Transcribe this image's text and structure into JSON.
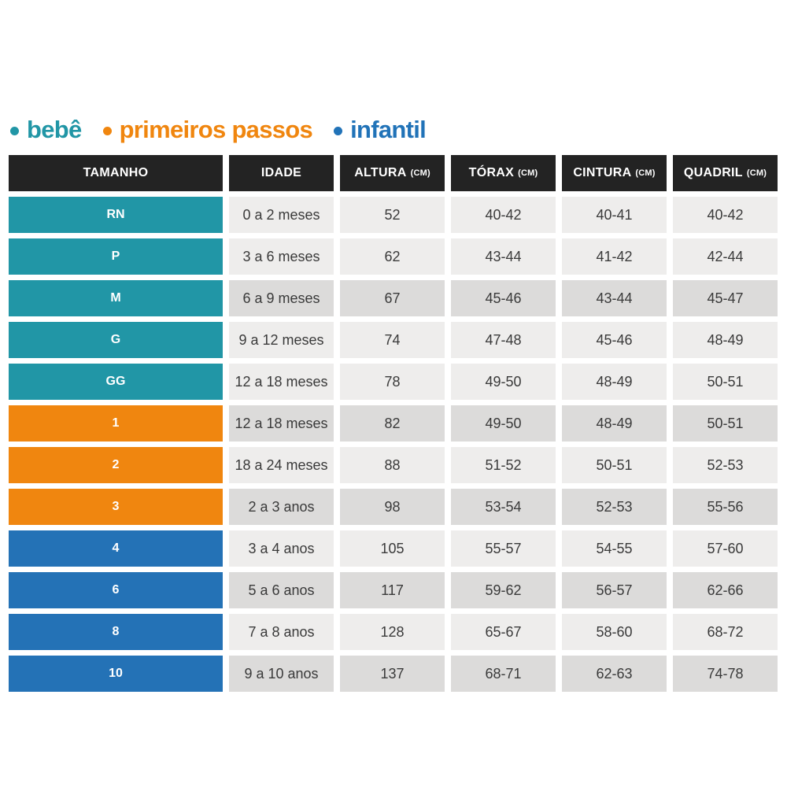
{
  "colors": {
    "bebe": "#2196a6",
    "primeiros_passos": "#f0860f",
    "infantil": "#2472b6",
    "header_bg": "#232323",
    "cell_light": "#eeedec",
    "cell_dark": "#dcdbda",
    "text": "#3a3a3a"
  },
  "legend": {
    "items": [
      {
        "id": "bebe",
        "label": "bebê",
        "color": "#2196a6"
      },
      {
        "id": "primeiros-passos",
        "label": "primeiros passos",
        "color": "#f0860f"
      },
      {
        "id": "infantil",
        "label": "infantil",
        "color": "#2173b8"
      }
    ]
  },
  "table": {
    "columns": [
      {
        "id": "tamanho",
        "label": "TAMANHO",
        "unit": ""
      },
      {
        "id": "idade",
        "label": "IDADE",
        "unit": ""
      },
      {
        "id": "altura",
        "label": "ALTURA",
        "unit": "(CM)"
      },
      {
        "id": "torax",
        "label": "TÓRAX",
        "unit": "(CM)"
      },
      {
        "id": "cintura",
        "label": "CINTURA",
        "unit": "(CM)"
      },
      {
        "id": "quadril",
        "label": "QUADRIL",
        "unit": "(CM)"
      }
    ],
    "rows": [
      {
        "size": "RN",
        "group": "bebe",
        "shade": "light",
        "idade": "0 a 2 meses",
        "altura": "52",
        "torax": "40-42",
        "cintura": "40-41",
        "quadril": "40-42"
      },
      {
        "size": "P",
        "group": "bebe",
        "shade": "light",
        "idade": "3 a 6 meses",
        "altura": "62",
        "torax": "43-44",
        "cintura": "41-42",
        "quadril": "42-44"
      },
      {
        "size": "M",
        "group": "bebe",
        "shade": "dark",
        "idade": "6 a 9 meses",
        "altura": "67",
        "torax": "45-46",
        "cintura": "43-44",
        "quadril": "45-47"
      },
      {
        "size": "G",
        "group": "bebe",
        "shade": "light",
        "idade": "9 a 12 meses",
        "altura": "74",
        "torax": "47-48",
        "cintura": "45-46",
        "quadril": "48-49"
      },
      {
        "size": "GG",
        "group": "bebe",
        "shade": "light",
        "idade": "12 a 18 meses",
        "altura": "78",
        "torax": "49-50",
        "cintura": "48-49",
        "quadril": "50-51"
      },
      {
        "size": "1",
        "group": "primeiros-passos",
        "shade": "dark",
        "idade": "12 a 18 meses",
        "altura": "82",
        "torax": "49-50",
        "cintura": "48-49",
        "quadril": "50-51"
      },
      {
        "size": "2",
        "group": "primeiros-passos",
        "shade": "light",
        "idade": "18 a 24 meses",
        "altura": "88",
        "torax": "51-52",
        "cintura": "50-51",
        "quadril": "52-53"
      },
      {
        "size": "3",
        "group": "primeiros-passos",
        "shade": "dark",
        "idade": "2 a 3 anos",
        "altura": "98",
        "torax": "53-54",
        "cintura": "52-53",
        "quadril": "55-56"
      },
      {
        "size": "4",
        "group": "infantil",
        "shade": "light",
        "idade": "3 a 4 anos",
        "altura": "105",
        "torax": "55-57",
        "cintura": "54-55",
        "quadril": "57-60"
      },
      {
        "size": "6",
        "group": "infantil",
        "shade": "dark",
        "idade": "5 a 6 anos",
        "altura": "117",
        "torax": "59-62",
        "cintura": "56-57",
        "quadril": "62-66"
      },
      {
        "size": "8",
        "group": "infantil",
        "shade": "light",
        "idade": "7 a 8 anos",
        "altura": "128",
        "torax": "65-67",
        "cintura": "58-60",
        "quadril": "68-72"
      },
      {
        "size": "10",
        "group": "infantil",
        "shade": "dark",
        "idade": "9 a 10 anos",
        "altura": "137",
        "torax": "68-71",
        "cintura": "62-63",
        "quadril": "74-78"
      }
    ]
  },
  "chart_data": {
    "type": "table",
    "title": "",
    "legend": [
      "bebê",
      "primeiros passos",
      "infantil"
    ],
    "columns": [
      "TAMANHO",
      "IDADE",
      "ALTURA (CM)",
      "TÓRAX (CM)",
      "CINTURA (CM)",
      "QUADRIL (CM)"
    ],
    "rows": [
      [
        "RN",
        "0 a 2 meses",
        "52",
        "40-42",
        "40-41",
        "40-42"
      ],
      [
        "P",
        "3 a 6 meses",
        "62",
        "43-44",
        "41-42",
        "42-44"
      ],
      [
        "M",
        "6 a 9 meses",
        "67",
        "45-46",
        "43-44",
        "45-47"
      ],
      [
        "G",
        "9 a 12 meses",
        "74",
        "47-48",
        "45-46",
        "48-49"
      ],
      [
        "GG",
        "12 a 18 meses",
        "78",
        "49-50",
        "48-49",
        "50-51"
      ],
      [
        "1",
        "12 a 18 meses",
        "82",
        "49-50",
        "48-49",
        "50-51"
      ],
      [
        "2",
        "18 a 24 meses",
        "88",
        "51-52",
        "50-51",
        "52-53"
      ],
      [
        "3",
        "2 a 3 anos",
        "98",
        "53-54",
        "52-53",
        "55-56"
      ],
      [
        "4",
        "3 a 4 anos",
        "105",
        "55-57",
        "54-55",
        "57-60"
      ],
      [
        "6",
        "5 a 6 anos",
        "117",
        "59-62",
        "56-57",
        "62-66"
      ],
      [
        "8",
        "7 a 8 anos",
        "128",
        "65-67",
        "58-60",
        "68-72"
      ],
      [
        "10",
        "9 a 10 anos",
        "137",
        "68-71",
        "62-63",
        "74-78"
      ]
    ],
    "row_groups": {
      "bebê": [
        "RN",
        "P",
        "M",
        "G",
        "GG"
      ],
      "primeiros passos": [
        "1",
        "2",
        "3"
      ],
      "infantil": [
        "4",
        "6",
        "8",
        "10"
      ]
    }
  }
}
